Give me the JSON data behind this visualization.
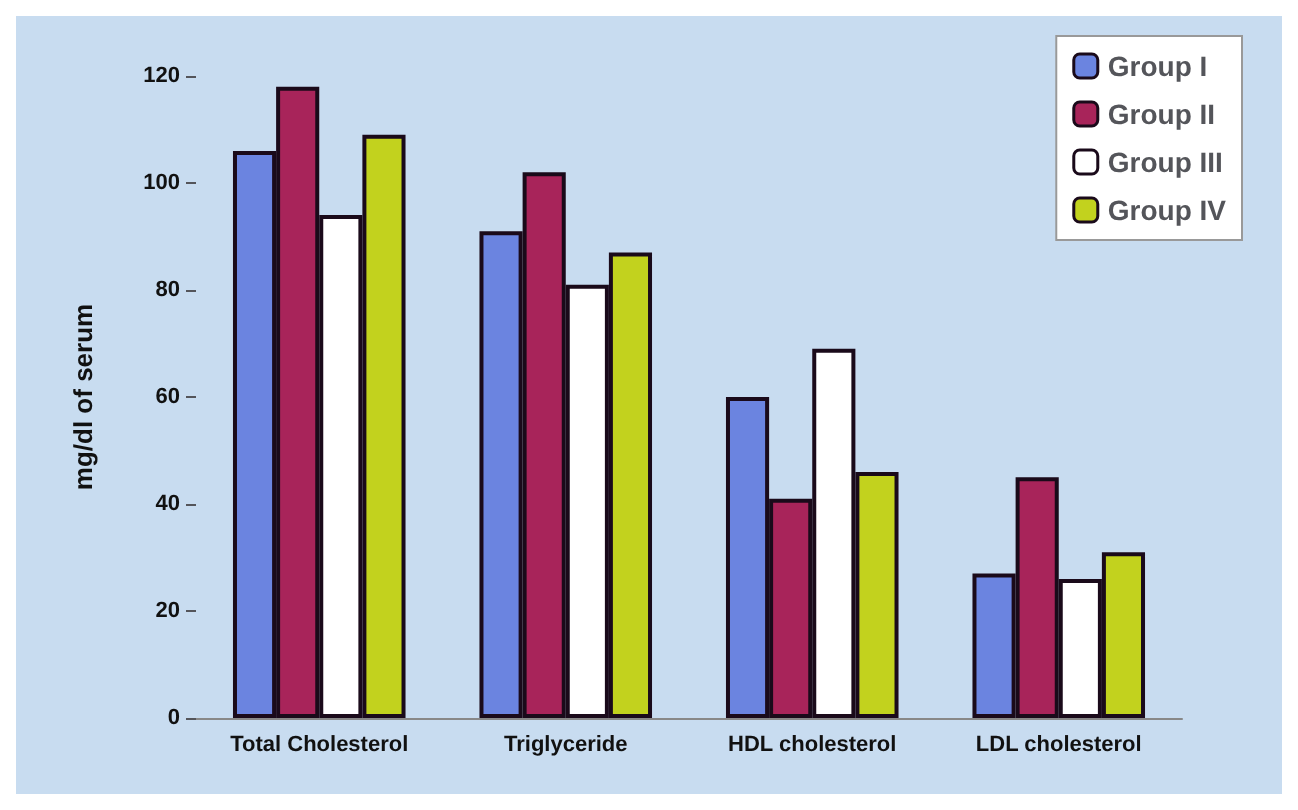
{
  "chart_data": {
    "type": "bar",
    "ylabel": "mg/dl of serum",
    "categories": [
      "Total Cholesterol",
      "Triglyceride",
      "HDL cholesterol",
      "LDL cholesterol"
    ],
    "series": [
      {
        "name": "Group I",
        "color": "#6b84e0",
        "values": [
          106,
          91,
          60,
          27
        ]
      },
      {
        "name": "Group II",
        "color": "#a8245a",
        "values": [
          118,
          102,
          41,
          45
        ]
      },
      {
        "name": "Group III",
        "color": "#ffffff",
        "values": [
          94,
          81,
          69,
          26
        ]
      },
      {
        "name": "Group IV",
        "color": "#c2d21e",
        "values": [
          109,
          87,
          46,
          31
        ]
      }
    ],
    "ylim": [
      0,
      120
    ],
    "yticks": [
      0,
      20,
      40,
      60,
      80,
      100,
      120
    ],
    "grid": false,
    "legend": "top right"
  }
}
